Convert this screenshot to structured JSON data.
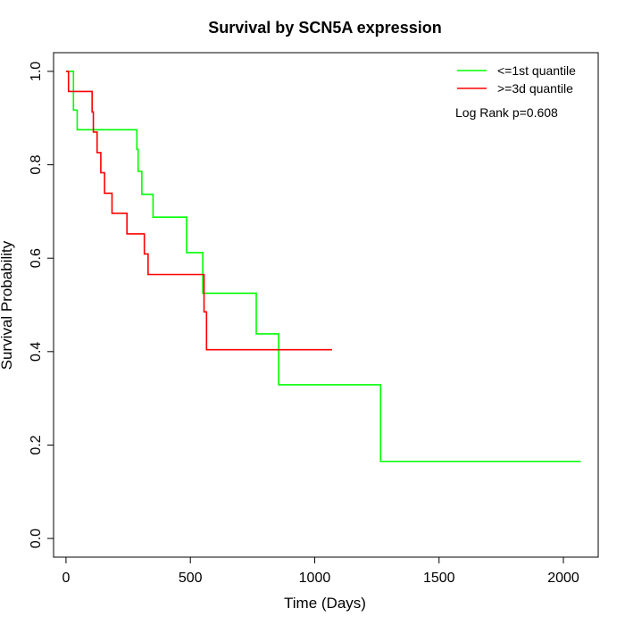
{
  "chart_data": {
    "type": "line",
    "title": "Survival by SCN5A expression",
    "xlabel": "Time (Days)",
    "ylabel": "Survival Probability",
    "xlim": [
      -50,
      2140
    ],
    "ylim": [
      -0.04,
      1.04
    ],
    "x_ticks": [
      0,
      500,
      1000,
      1500,
      2000
    ],
    "x_tick_labels": [
      "0",
      "500",
      "1000",
      "1500",
      "2000"
    ],
    "y_ticks": [
      0.0,
      0.2,
      0.4,
      0.6,
      0.8,
      1.0
    ],
    "y_tick_labels": [
      "0.0",
      "0.2",
      "0.4",
      "0.6",
      "0.8",
      "1.0"
    ],
    "grid": false,
    "legend_position": "top-right",
    "annotation": "Log Rank p=0.608",
    "series": [
      {
        "name": "<=1st quantile",
        "color": "#00ff00",
        "step": true,
        "x": [
          0,
          25,
          30,
          45,
          280,
          285,
          290,
          305,
          350,
          485,
          550,
          765,
          855,
          1265,
          2070
        ],
        "y": [
          1.0,
          1.0,
          0.917,
          0.875,
          0.875,
          0.833,
          0.786,
          0.737,
          0.688,
          0.612,
          0.525,
          0.438,
          0.329,
          0.165,
          0.165
        ]
      },
      {
        "name": ">=3d quantile",
        "color": "#ff0000",
        "step": true,
        "x": [
          0,
          10,
          105,
          110,
          125,
          140,
          155,
          165,
          185,
          245,
          315,
          330,
          555,
          565,
          1070
        ],
        "y": [
          1.0,
          0.957,
          0.913,
          0.87,
          0.826,
          0.783,
          0.739,
          0.739,
          0.696,
          0.652,
          0.609,
          0.565,
          0.485,
          0.404,
          0.404
        ]
      }
    ]
  }
}
